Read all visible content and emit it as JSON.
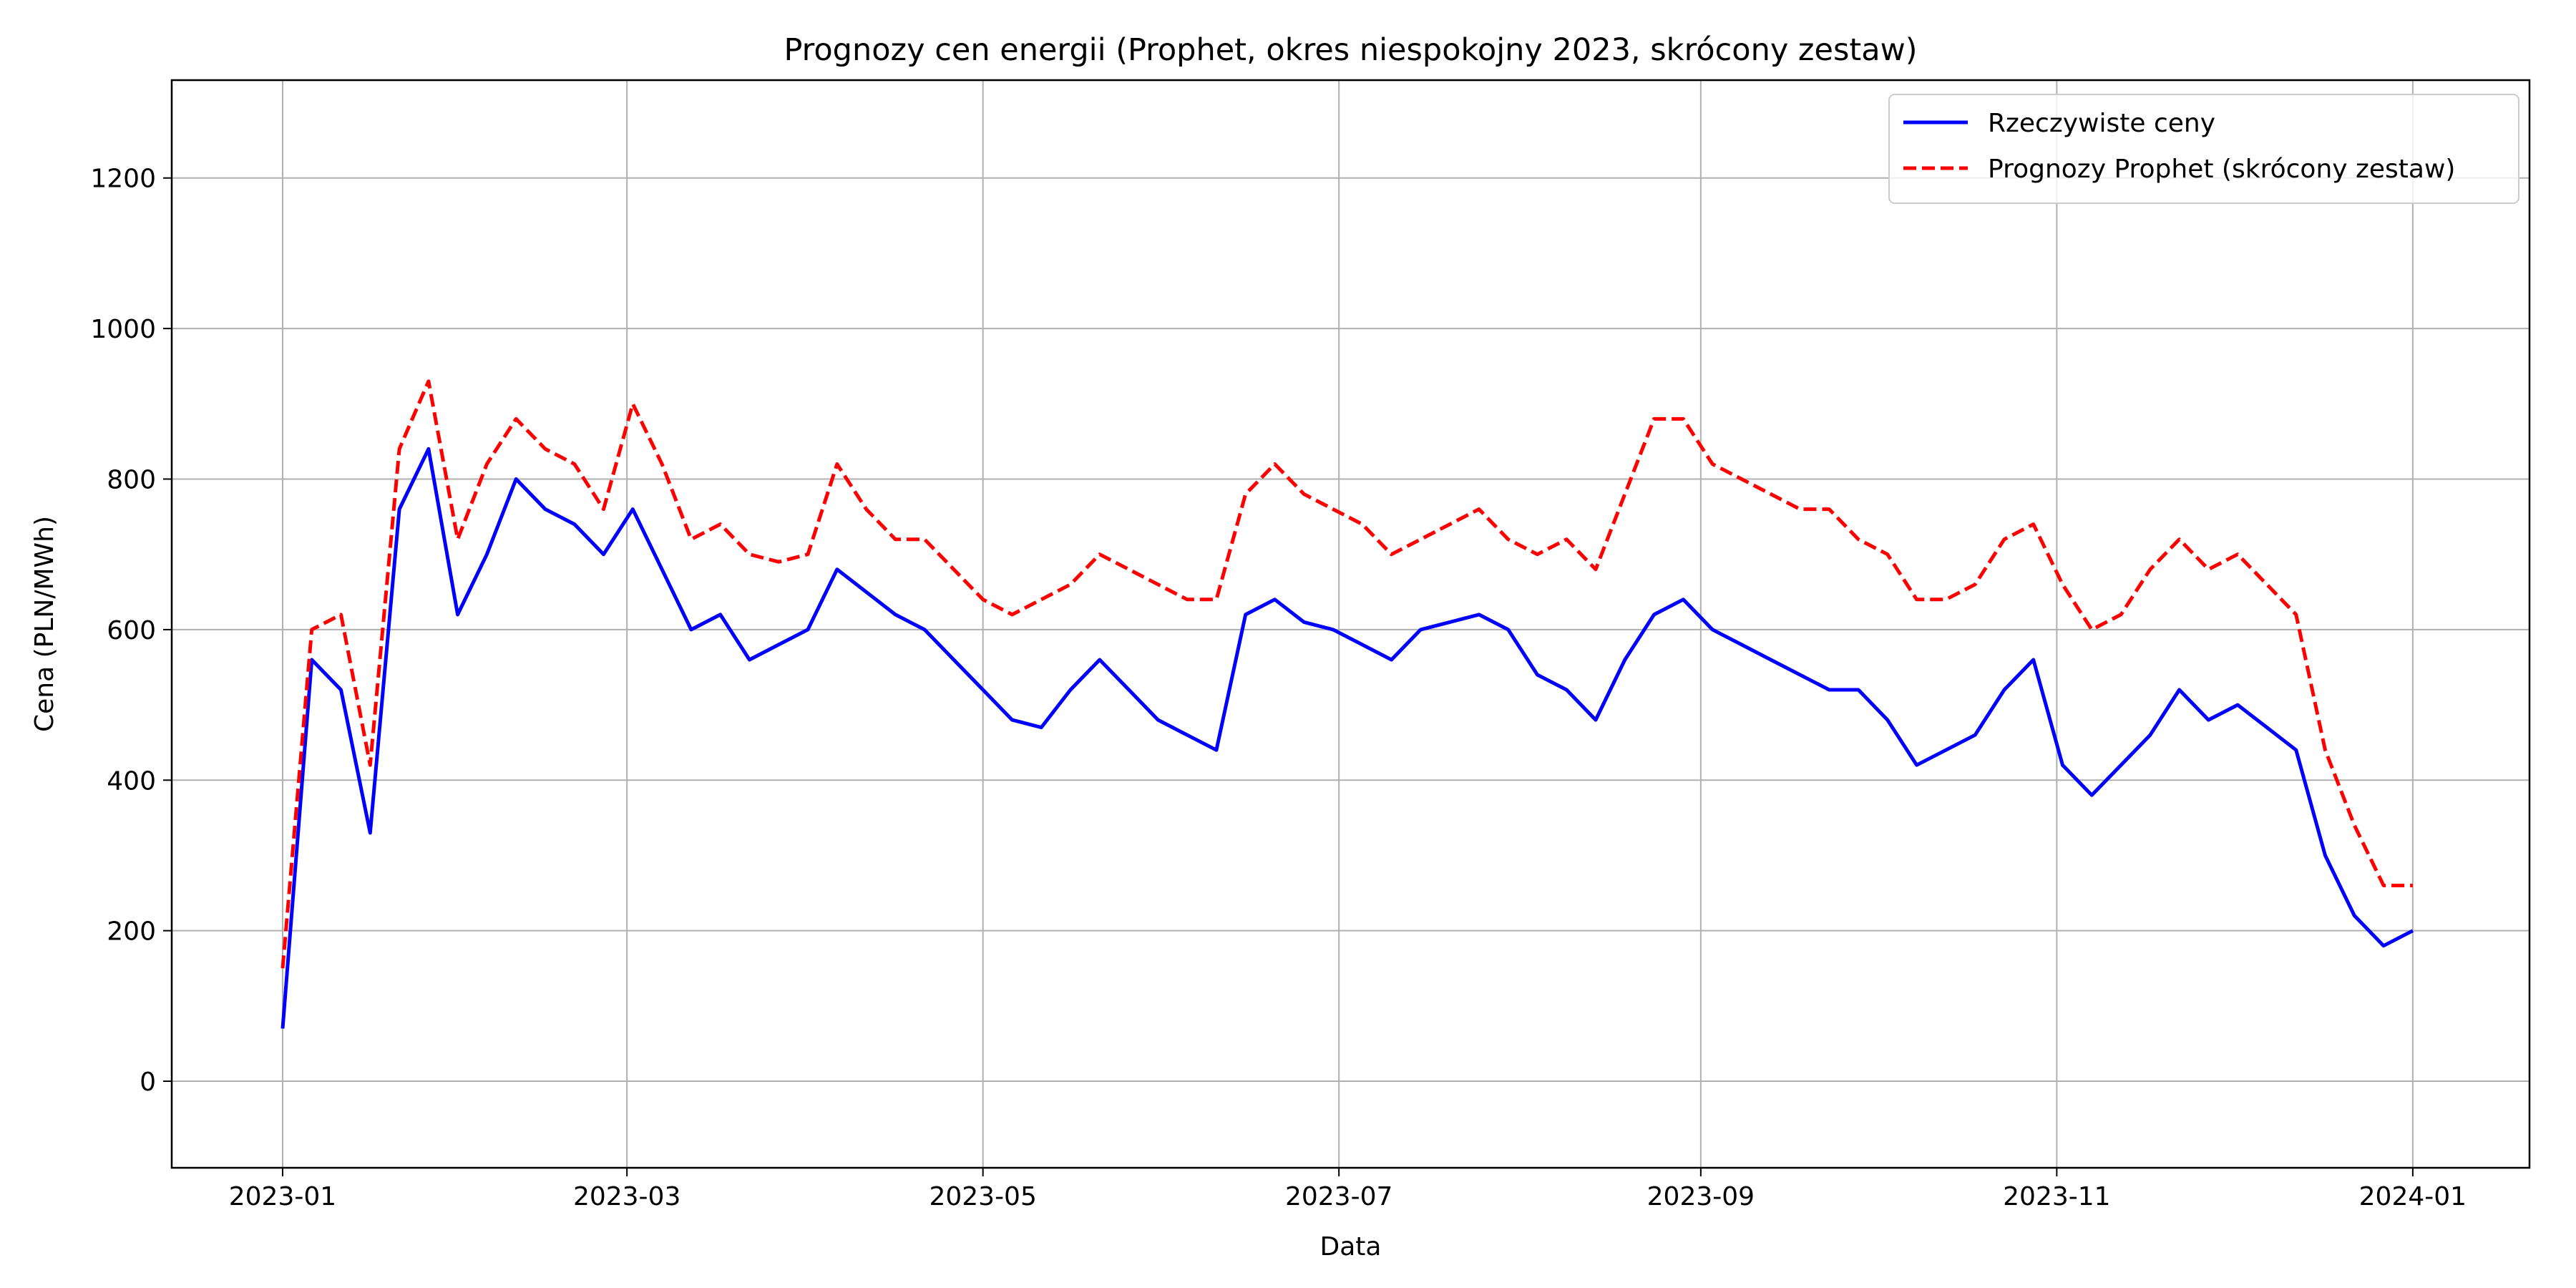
{
  "chart_data": {
    "type": "line",
    "title": "Prognozy cen energii (Prophet, okres niespokojny 2023, skrócony zestaw)",
    "xlabel": "Data",
    "ylabel": "Cena (PLN/MWh)",
    "xlim": [
      "2022-12-13",
      "2024-01-21"
    ],
    "ylim": [
      -115,
      1330
    ],
    "x_ticks": [
      "2023-01",
      "2023-03",
      "2023-05",
      "2023-07",
      "2023-09",
      "2023-11",
      "2024-01"
    ],
    "y_ticks": [
      "0",
      "200",
      "400",
      "600",
      "800",
      "1000",
      "1200"
    ],
    "grid": true,
    "legend_position": "top-right",
    "colors": {
      "actual": "#0000ff",
      "forecast": "#ff0000"
    },
    "series": [
      {
        "name": "Rzeczywiste ceny",
        "style": "solid",
        "x": [
          "2023-01-01",
          "2023-01-06",
          "2023-01-11",
          "2023-01-16",
          "2023-01-21",
          "2023-01-26",
          "2023-01-31",
          "2023-02-05",
          "2023-02-10",
          "2023-02-15",
          "2023-02-20",
          "2023-02-25",
          "2023-03-02",
          "2023-03-07",
          "2023-03-12",
          "2023-03-17",
          "2023-03-22",
          "2023-03-27",
          "2023-04-01",
          "2023-04-06",
          "2023-04-11",
          "2023-04-16",
          "2023-04-21",
          "2023-04-26",
          "2023-05-01",
          "2023-05-06",
          "2023-05-11",
          "2023-05-16",
          "2023-05-21",
          "2023-05-26",
          "2023-05-31",
          "2023-06-05",
          "2023-06-10",
          "2023-06-15",
          "2023-06-20",
          "2023-06-25",
          "2023-06-30",
          "2023-07-05",
          "2023-07-10",
          "2023-07-15",
          "2023-07-20",
          "2023-07-25",
          "2023-07-30",
          "2023-08-04",
          "2023-08-09",
          "2023-08-14",
          "2023-08-19",
          "2023-08-24",
          "2023-08-29",
          "2023-09-03",
          "2023-09-08",
          "2023-09-13",
          "2023-09-18",
          "2023-09-23",
          "2023-09-28",
          "2023-10-03",
          "2023-10-08",
          "2023-10-13",
          "2023-10-18",
          "2023-10-23",
          "2023-10-28",
          "2023-11-02",
          "2023-11-07",
          "2023-11-12",
          "2023-11-17",
          "2023-11-22",
          "2023-11-27",
          "2023-12-02",
          "2023-12-07",
          "2023-12-12",
          "2023-12-17",
          "2023-12-22",
          "2023-12-27",
          "2024-01-01"
        ],
        "values": [
          70,
          560,
          520,
          330,
          760,
          840,
          620,
          700,
          800,
          760,
          740,
          700,
          760,
          680,
          600,
          620,
          560,
          580,
          600,
          680,
          650,
          620,
          600,
          560,
          520,
          480,
          470,
          520,
          560,
          520,
          480,
          460,
          440,
          620,
          640,
          610,
          600,
          580,
          560,
          600,
          610,
          620,
          600,
          540,
          520,
          480,
          560,
          620,
          640,
          600,
          580,
          560,
          540,
          520,
          520,
          480,
          420,
          440,
          460,
          520,
          560,
          420,
          380,
          420,
          460,
          520,
          480,
          500,
          470,
          440,
          300,
          220,
          180,
          200
        ]
      },
      {
        "name": "Prognozy Prophet (skrócony zestaw)",
        "style": "dashed",
        "x": [
          "2023-01-01",
          "2023-01-06",
          "2023-01-11",
          "2023-01-16",
          "2023-01-21",
          "2023-01-26",
          "2023-01-31",
          "2023-02-05",
          "2023-02-10",
          "2023-02-15",
          "2023-02-20",
          "2023-02-25",
          "2023-03-02",
          "2023-03-07",
          "2023-03-12",
          "2023-03-17",
          "2023-03-22",
          "2023-03-27",
          "2023-04-01",
          "2023-04-06",
          "2023-04-11",
          "2023-04-16",
          "2023-04-21",
          "2023-04-26",
          "2023-05-01",
          "2023-05-06",
          "2023-05-11",
          "2023-05-16",
          "2023-05-21",
          "2023-05-26",
          "2023-05-31",
          "2023-06-05",
          "2023-06-10",
          "2023-06-15",
          "2023-06-20",
          "2023-06-25",
          "2023-06-30",
          "2023-07-05",
          "2023-07-10",
          "2023-07-15",
          "2023-07-20",
          "2023-07-25",
          "2023-07-30",
          "2023-08-04",
          "2023-08-09",
          "2023-08-14",
          "2023-08-19",
          "2023-08-24",
          "2023-08-29",
          "2023-09-03",
          "2023-09-08",
          "2023-09-13",
          "2023-09-18",
          "2023-09-23",
          "2023-09-28",
          "2023-10-03",
          "2023-10-08",
          "2023-10-13",
          "2023-10-18",
          "2023-10-23",
          "2023-10-28",
          "2023-11-02",
          "2023-11-07",
          "2023-11-12",
          "2023-11-17",
          "2023-11-22",
          "2023-11-27",
          "2023-12-02",
          "2023-12-07",
          "2023-12-12",
          "2023-12-17",
          "2023-12-22",
          "2023-12-27",
          "2024-01-01"
        ],
        "values": [
          150,
          600,
          620,
          420,
          840,
          930,
          720,
          820,
          880,
          840,
          820,
          760,
          900,
          820,
          720,
          740,
          700,
          690,
          700,
          820,
          760,
          720,
          720,
          680,
          640,
          620,
          640,
          660,
          700,
          680,
          660,
          640,
          640,
          780,
          820,
          780,
          760,
          740,
          700,
          720,
          740,
          760,
          720,
          700,
          720,
          680,
          780,
          880,
          880,
          820,
          800,
          780,
          760,
          760,
          720,
          700,
          640,
          640,
          660,
          720,
          740,
          660,
          600,
          620,
          680,
          720,
          680,
          700,
          660,
          620,
          440,
          340,
          260,
          260
        ]
      }
    ]
  }
}
